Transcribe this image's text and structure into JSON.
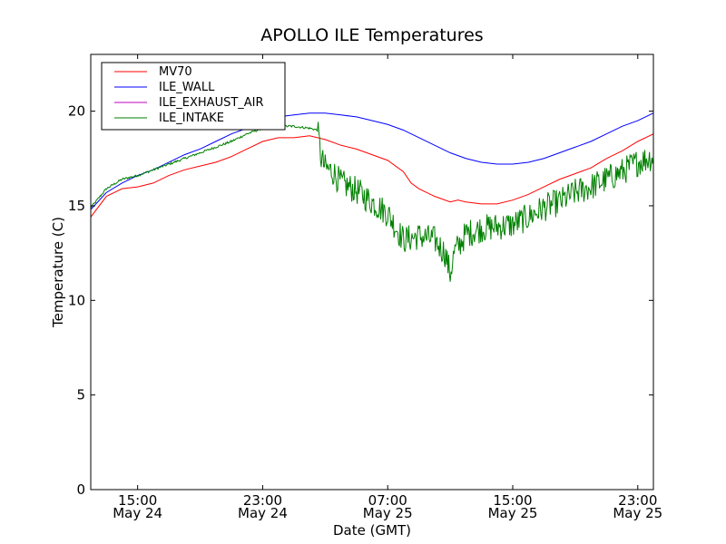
{
  "chart_data": {
    "type": "line",
    "title": "APOLLO ILE Temperatures",
    "xlabel": "Date (GMT)",
    "ylabel": "Temperature (C)",
    "xlim": [
      "2013-05-24 12:00",
      "2013-05-26 00:00"
    ],
    "ylim": [
      0,
      23
    ],
    "grid": false,
    "legend_position": "top-left",
    "yticks": [
      "0",
      "5",
      "10",
      "15",
      "20"
    ],
    "xticks": [
      {
        "at": "2013-05-24 15:00",
        "time": "15:00",
        "date": "May 24"
      },
      {
        "at": "2013-05-24 23:00",
        "time": "23:00",
        "date": "May 24"
      },
      {
        "at": "2013-05-25 07:00",
        "time": "07:00",
        "date": "May 25"
      },
      {
        "at": "2013-05-25 15:00",
        "time": "15:00",
        "date": "May 25"
      },
      {
        "at": "2013-05-25 23:00",
        "time": "23:00",
        "date": "May 25"
      }
    ],
    "series": [
      {
        "name": "MV70",
        "color": "#ff0000",
        "points": [
          [
            "2013-05-24 12:00",
            14.4
          ],
          [
            "2013-05-24 13:00",
            15.5
          ],
          [
            "2013-05-24 14:00",
            15.9
          ],
          [
            "2013-05-24 15:00",
            16.0
          ],
          [
            "2013-05-24 16:00",
            16.2
          ],
          [
            "2013-05-24 17:00",
            16.6
          ],
          [
            "2013-05-24 18:00",
            16.9
          ],
          [
            "2013-05-24 19:00",
            17.1
          ],
          [
            "2013-05-24 20:00",
            17.3
          ],
          [
            "2013-05-24 21:00",
            17.6
          ],
          [
            "2013-05-24 22:00",
            18.0
          ],
          [
            "2013-05-24 23:00",
            18.4
          ],
          [
            "2013-05-25 00:00",
            18.6
          ],
          [
            "2013-05-25 01:00",
            18.6
          ],
          [
            "2013-05-25 02:00",
            18.7
          ],
          [
            "2013-05-25 03:00",
            18.5
          ],
          [
            "2013-05-25 04:00",
            18.2
          ],
          [
            "2013-05-25 05:00",
            18.0
          ],
          [
            "2013-05-25 06:00",
            17.7
          ],
          [
            "2013-05-25 07:00",
            17.4
          ],
          [
            "2013-05-25 08:00",
            16.8
          ],
          [
            "2013-05-25 08:30",
            16.2
          ],
          [
            "2013-05-25 09:00",
            15.9
          ],
          [
            "2013-05-25 10:00",
            15.5
          ],
          [
            "2013-05-25 11:00",
            15.2
          ],
          [
            "2013-05-25 11:30",
            15.3
          ],
          [
            "2013-05-25 12:00",
            15.2
          ],
          [
            "2013-05-25 13:00",
            15.1
          ],
          [
            "2013-05-25 14:00",
            15.1
          ],
          [
            "2013-05-25 15:00",
            15.3
          ],
          [
            "2013-05-25 16:00",
            15.6
          ],
          [
            "2013-05-25 17:00",
            16.0
          ],
          [
            "2013-05-25 18:00",
            16.4
          ],
          [
            "2013-05-25 19:00",
            16.7
          ],
          [
            "2013-05-25 20:00",
            17.0
          ],
          [
            "2013-05-25 21:00",
            17.5
          ],
          [
            "2013-05-25 22:00",
            17.9
          ],
          [
            "2013-05-25 23:00",
            18.4
          ],
          [
            "2013-05-26 00:00",
            18.8
          ]
        ]
      },
      {
        "name": "ILE_WALL",
        "color": "#0000ff",
        "points": [
          [
            "2013-05-24 12:00",
            14.8
          ],
          [
            "2013-05-24 13:00",
            15.7
          ],
          [
            "2013-05-24 14:00",
            16.2
          ],
          [
            "2013-05-24 15:00",
            16.6
          ],
          [
            "2013-05-24 16:00",
            16.9
          ],
          [
            "2013-05-24 17:00",
            17.3
          ],
          [
            "2013-05-24 18:00",
            17.7
          ],
          [
            "2013-05-24 19:00",
            18.0
          ],
          [
            "2013-05-24 20:00",
            18.4
          ],
          [
            "2013-05-24 21:00",
            18.8
          ],
          [
            "2013-05-24 22:00",
            19.1
          ],
          [
            "2013-05-24 23:00",
            19.5
          ],
          [
            "2013-05-25 00:00",
            19.7
          ],
          [
            "2013-05-25 01:00",
            19.8
          ],
          [
            "2013-05-25 02:00",
            19.9
          ],
          [
            "2013-05-25 03:00",
            19.9
          ],
          [
            "2013-05-25 04:00",
            19.8
          ],
          [
            "2013-05-25 05:00",
            19.7
          ],
          [
            "2013-05-25 06:00",
            19.5
          ],
          [
            "2013-05-25 07:00",
            19.3
          ],
          [
            "2013-05-25 08:00",
            19.0
          ],
          [
            "2013-05-25 09:00",
            18.6
          ],
          [
            "2013-05-25 10:00",
            18.2
          ],
          [
            "2013-05-25 11:00",
            17.8
          ],
          [
            "2013-05-25 12:00",
            17.5
          ],
          [
            "2013-05-25 13:00",
            17.3
          ],
          [
            "2013-05-25 14:00",
            17.2
          ],
          [
            "2013-05-25 15:00",
            17.2
          ],
          [
            "2013-05-25 16:00",
            17.3
          ],
          [
            "2013-05-25 17:00",
            17.5
          ],
          [
            "2013-05-25 18:00",
            17.8
          ],
          [
            "2013-05-25 19:00",
            18.1
          ],
          [
            "2013-05-25 20:00",
            18.4
          ],
          [
            "2013-05-25 21:00",
            18.8
          ],
          [
            "2013-05-25 22:00",
            19.2
          ],
          [
            "2013-05-25 23:00",
            19.5
          ],
          [
            "2013-05-26 00:00",
            19.9
          ]
        ]
      },
      {
        "name": "ILE_EXHAUST_AIR",
        "color": "#bf00bf",
        "points": []
      },
      {
        "name": "ILE_INTAKE",
        "color": "#008000",
        "noise": "high-frequency fluctuations of up to about ±0.8 C after 02:30 May 25",
        "points": [
          [
            "2013-05-24 12:00",
            14.9
          ],
          [
            "2013-05-24 13:00",
            15.9
          ],
          [
            "2013-05-24 14:00",
            16.4
          ],
          [
            "2013-05-24 15:00",
            16.6
          ],
          [
            "2013-05-24 16:00",
            16.9
          ],
          [
            "2013-05-24 17:00",
            17.2
          ],
          [
            "2013-05-24 18:00",
            17.5
          ],
          [
            "2013-05-24 19:00",
            17.8
          ],
          [
            "2013-05-24 20:00",
            18.1
          ],
          [
            "2013-05-24 21:00",
            18.4
          ],
          [
            "2013-05-24 22:00",
            18.8
          ],
          [
            "2013-05-24 23:00",
            19.1
          ],
          [
            "2013-05-25 00:00",
            19.2
          ],
          [
            "2013-05-25 01:00",
            19.2
          ],
          [
            "2013-05-25 02:00",
            19.1
          ],
          [
            "2013-05-25 02:30",
            19.0
          ],
          [
            "2013-05-25 02:45",
            17.5
          ],
          [
            "2013-05-25 03:00",
            17.0
          ],
          [
            "2013-05-25 03:30",
            16.8
          ],
          [
            "2013-05-25 04:00",
            16.2
          ],
          [
            "2013-05-25 05:00",
            15.8
          ],
          [
            "2013-05-25 06:00",
            15.2
          ],
          [
            "2013-05-25 07:00",
            14.6
          ],
          [
            "2013-05-25 08:00",
            13.2
          ],
          [
            "2013-05-25 09:00",
            13.4
          ],
          [
            "2013-05-25 10:00",
            13.2
          ],
          [
            "2013-05-25 10:40",
            12.5
          ],
          [
            "2013-05-25 11:00",
            11.4
          ],
          [
            "2013-05-25 11:15",
            12.5
          ],
          [
            "2013-05-25 12:00",
            13.5
          ],
          [
            "2013-05-25 13:00",
            13.8
          ],
          [
            "2013-05-25 14:00",
            13.9
          ],
          [
            "2013-05-25 15:00",
            14.0
          ],
          [
            "2013-05-25 16:00",
            14.4
          ],
          [
            "2013-05-25 17:00",
            14.9
          ],
          [
            "2013-05-25 18:00",
            15.2
          ],
          [
            "2013-05-25 19:00",
            15.7
          ],
          [
            "2013-05-25 20:00",
            16.0
          ],
          [
            "2013-05-25 21:00",
            16.4
          ],
          [
            "2013-05-25 22:00",
            16.8
          ],
          [
            "2013-05-25 23:00",
            17.3
          ],
          [
            "2013-05-26 00:00",
            17.6
          ]
        ]
      }
    ]
  }
}
